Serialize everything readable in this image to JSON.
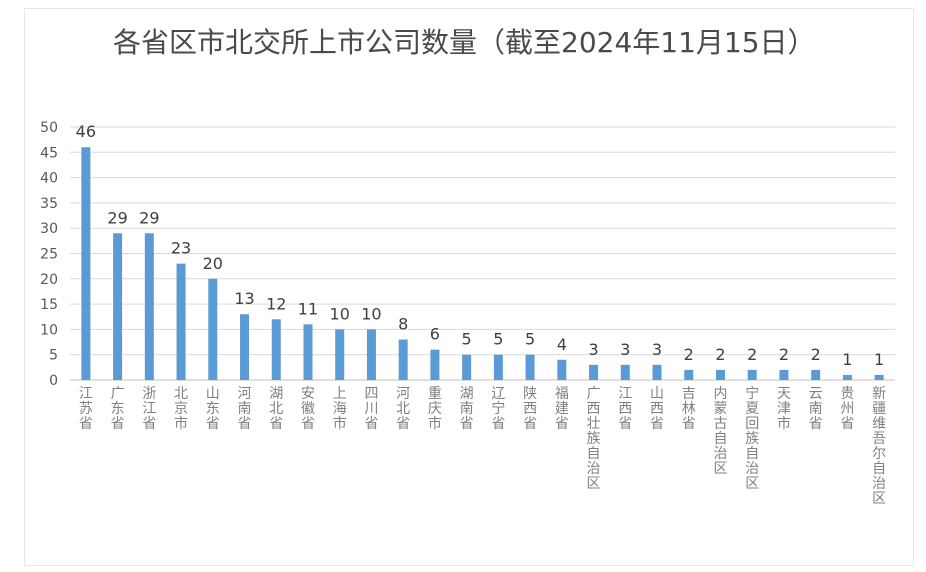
{
  "chart_data": {
    "type": "bar",
    "title": "各省区市北交所上市公司数量（截至2024年11月15日）",
    "categories": [
      "江苏省",
      "广东省",
      "浙江省",
      "北京市",
      "山东省",
      "河南省",
      "湖北省",
      "安徽省",
      "上海市",
      "四川省",
      "河北省",
      "重庆市",
      "湖南省",
      "辽宁省",
      "陕西省",
      "福建省",
      "广西壮族自治区",
      "江西省",
      "山西省",
      "吉林省",
      "内蒙古自治区",
      "宁夏回族自治区",
      "天津市",
      "云南省",
      "贵州省",
      "新疆维吾尔自治区"
    ],
    "values": [
      46,
      29,
      29,
      23,
      20,
      13,
      12,
      11,
      10,
      10,
      8,
      6,
      5,
      5,
      5,
      4,
      3,
      3,
      3,
      2,
      2,
      2,
      2,
      2,
      1,
      1
    ],
    "ylim": [
      0,
      50
    ],
    "yticks": [
      0,
      5,
      10,
      15,
      20,
      25,
      30,
      35,
      40,
      45,
      50
    ],
    "grid": true,
    "bar_color": "#5b9bd5",
    "xlabel": "",
    "ylabel": ""
  }
}
